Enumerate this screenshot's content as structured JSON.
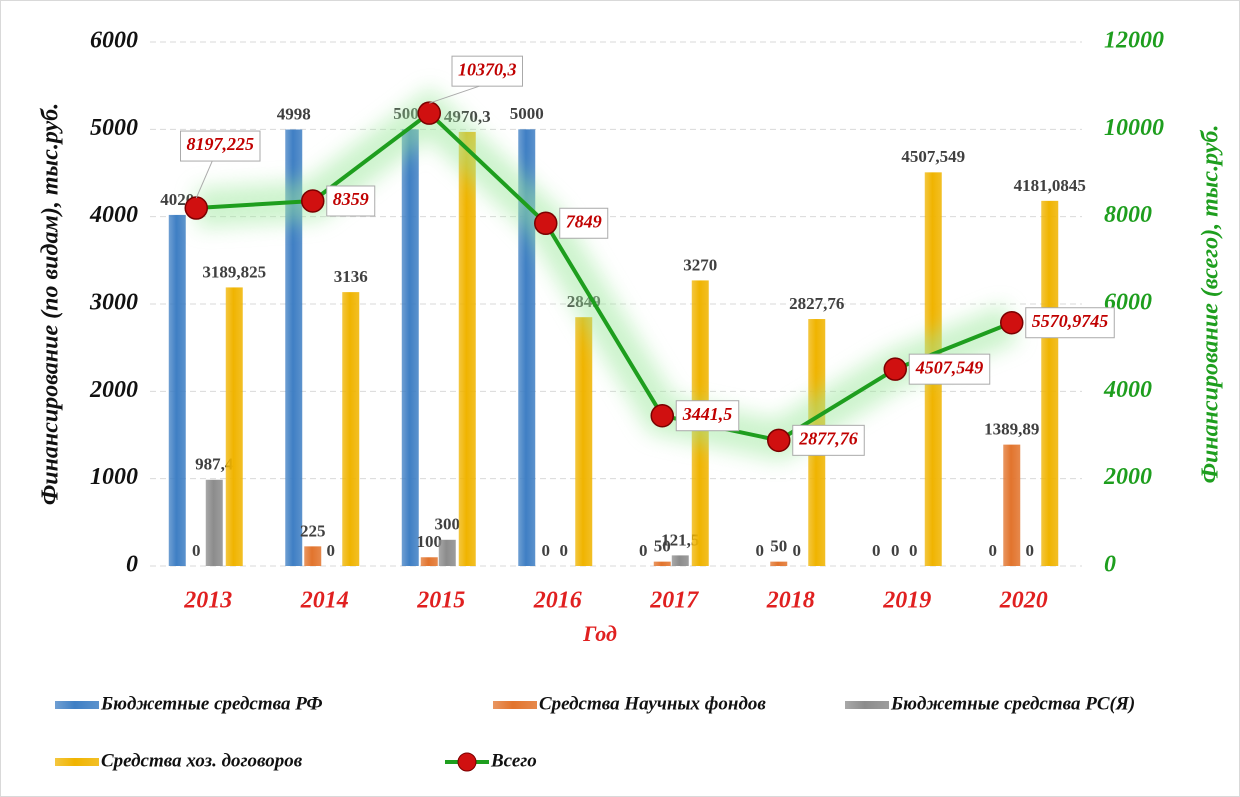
{
  "chart_data": {
    "type": "bar",
    "categories": [
      "2013",
      "2014",
      "2015",
      "2016",
      "2017",
      "2018",
      "2019",
      "2020"
    ],
    "x_label": "Год",
    "y_label": "Финансирование (по видам), тыс.руб.",
    "y2_label": "Финансирование (всего), тыс.руб.",
    "ylim": [
      0,
      6000
    ],
    "yticks": [
      0,
      1000,
      2000,
      3000,
      4000,
      5000,
      6000
    ],
    "y2lim": [
      0,
      12000
    ],
    "y2ticks": [
      0,
      2000,
      4000,
      6000,
      8000,
      10000,
      12000
    ],
    "series": [
      {
        "name": "Бюджетные средства РФ",
        "type": "bar",
        "color": "#3f7fc4",
        "values": [
          4020,
          4998,
          5000,
          5000,
          0,
          0,
          0,
          0
        ]
      },
      {
        "name": "Средства Научных фондов",
        "type": "bar",
        "color": "#e2742d",
        "values": [
          0,
          225,
          100,
          0,
          50,
          50,
          0,
          1389.89
        ],
        "value_labels": [
          "0",
          "225",
          "100",
          "0",
          "50",
          "50",
          "0",
          "1389,89"
        ]
      },
      {
        "name": "Бюджетные средства РС(Я)",
        "type": "bar",
        "color": "#8c8c8c",
        "values": [
          987.4,
          0,
          300,
          0,
          121.5,
          0,
          0,
          0
        ],
        "value_labels": [
          "987,4",
          "0",
          "300",
          "0",
          "121,5",
          "0",
          "0",
          "0"
        ]
      },
      {
        "name": "Средства хоз. договоров",
        "type": "bar",
        "color": "#f0b400",
        "values": [
          3189.825,
          3136,
          4970.3,
          2849,
          3270,
          2827.76,
          4507.549,
          4181.0845
        ],
        "value_labels": [
          "3189,825",
          "3136",
          "4970,3",
          "2849",
          "3270",
          "2827,76",
          "4507,549",
          "4181,0845"
        ]
      },
      {
        "name": "Всего",
        "type": "line",
        "axis": "y2",
        "color": "#1e9e1e",
        "marker_color": "#d01010",
        "values": [
          8197.225,
          8359,
          10370.3,
          7849,
          3441.5,
          2877.76,
          4507.549,
          5570.9745
        ],
        "value_labels": [
          "8197,225",
          "8359",
          "10370,3",
          "7849",
          "3441,5",
          "2877,76",
          "4507,549",
          "5570,9745"
        ]
      }
    ]
  }
}
